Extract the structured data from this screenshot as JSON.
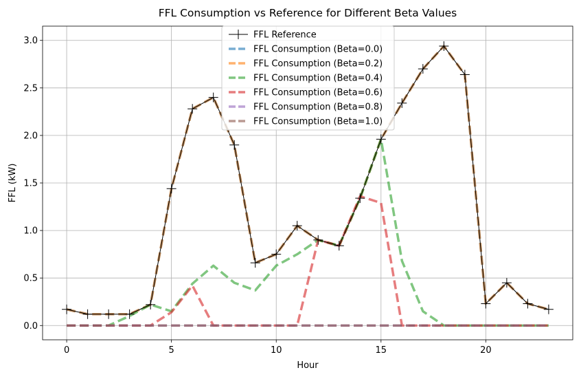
{
  "chart_data": {
    "type": "line",
    "title": "FFL Consumption vs Reference for Different Beta Values",
    "xlabel": "Hour",
    "ylabel": "FFL (kW)",
    "xlim": [
      -1.15,
      24.15
    ],
    "ylim": [
      -0.15,
      3.15
    ],
    "xticks": [
      0,
      5,
      10,
      15,
      20
    ],
    "yticks": [
      0.0,
      0.5,
      1.0,
      1.5,
      2.0,
      2.5,
      3.0
    ],
    "xtick_labels": [
      "0",
      "5",
      "10",
      "15",
      "20"
    ],
    "ytick_labels": [
      "0.0",
      "0.5",
      "1.0",
      "1.5",
      "2.0",
      "2.5",
      "3.0"
    ],
    "grid": true,
    "legend_position": "top-center",
    "x": [
      0,
      1,
      2,
      3,
      4,
      5,
      6,
      7,
      8,
      9,
      10,
      11,
      12,
      13,
      14,
      15,
      16,
      17,
      18,
      19,
      20,
      21,
      22,
      23
    ],
    "series": [
      {
        "name": "FFL Reference",
        "color": "#000000",
        "style": "solid-plus-markers",
        "values": [
          0.17,
          0.12,
          0.12,
          0.12,
          0.22,
          1.44,
          2.28,
          2.4,
          1.9,
          0.66,
          0.75,
          1.05,
          0.9,
          0.84,
          1.34,
          1.96,
          2.34,
          2.7,
          2.94,
          2.64,
          0.23,
          0.45,
          0.23,
          0.17
        ]
      },
      {
        "name": "FFL Consumption (Beta=0.0)",
        "color": "#1f77b4",
        "style": "dashed",
        "values": [
          0.17,
          0.12,
          0.12,
          0.12,
          0.22,
          1.44,
          2.28,
          2.4,
          1.9,
          0.66,
          0.75,
          1.05,
          0.9,
          0.84,
          1.34,
          1.96,
          2.34,
          2.7,
          2.94,
          2.64,
          0.23,
          0.45,
          0.23,
          0.17
        ]
      },
      {
        "name": "FFL Consumption (Beta=0.2)",
        "color": "#ff7f0e",
        "style": "dashed",
        "values": [
          0.17,
          0.12,
          0.12,
          0.12,
          0.22,
          1.44,
          2.28,
          2.4,
          1.9,
          0.66,
          0.75,
          1.05,
          0.9,
          0.84,
          1.34,
          1.96,
          2.34,
          2.7,
          2.94,
          2.64,
          0.23,
          0.45,
          0.23,
          0.17
        ]
      },
      {
        "name": "FFL Consumption (Beta=0.4)",
        "color": "#2ca02c",
        "style": "dashed",
        "values": [
          0,
          0,
          0,
          0.1,
          0.22,
          0.15,
          0.44,
          0.63,
          0.45,
          0.37,
          0.63,
          0.75,
          0.9,
          0.84,
          1.34,
          1.96,
          0.68,
          0.15,
          0,
          0,
          0,
          0,
          0,
          0
        ]
      },
      {
        "name": "FFL Consumption (Beta=0.6)",
        "color": "#d62728",
        "style": "dashed",
        "values": [
          0,
          0,
          0,
          0,
          0,
          0.14,
          0.42,
          0,
          0,
          0,
          0,
          0,
          0.9,
          0.84,
          1.36,
          1.29,
          0,
          0,
          0,
          0,
          0,
          0,
          0,
          0
        ]
      },
      {
        "name": "FFL Consumption (Beta=0.8)",
        "color": "#9467bd",
        "style": "dashed",
        "values": [
          0,
          0,
          0,
          0,
          0,
          0,
          0,
          0,
          0,
          0,
          0,
          0,
          0,
          0,
          0,
          0,
          0,
          0,
          0,
          0,
          0,
          0,
          0,
          0
        ]
      },
      {
        "name": "FFL Consumption (Beta=1.0)",
        "color": "#8c564b",
        "style": "dashed",
        "values": [
          0,
          0,
          0,
          0,
          0,
          0,
          0,
          0,
          0,
          0,
          0,
          0,
          0,
          0,
          0,
          0,
          0,
          0,
          0,
          0,
          0,
          0,
          0,
          0
        ]
      }
    ]
  }
}
